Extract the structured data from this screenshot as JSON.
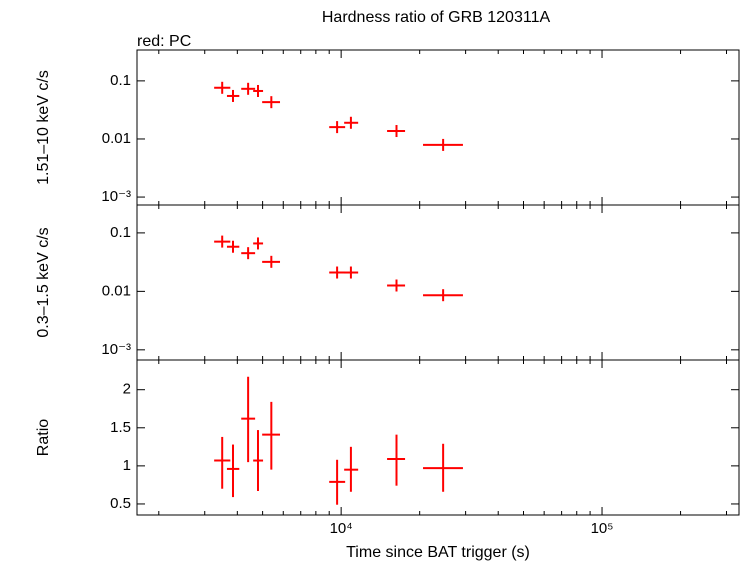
{
  "chart_data": [
    {
      "type": "scatter",
      "title": "Hardness ratio of GRB 120311A",
      "subtitle": "red: PC",
      "ylabel": "1.51–10 keV c/s",
      "xlog": true,
      "ylog": true,
      "xlim": [
        1650,
        335000
      ],
      "ylim": [
        0.00073,
        0.34
      ],
      "xticks": [
        10000,
        100000
      ],
      "xminor": [
        2000,
        3000,
        4000,
        5000,
        6000,
        7000,
        8000,
        9000,
        20000,
        30000,
        40000,
        50000,
        60000,
        70000,
        80000,
        90000,
        200000,
        300000
      ],
      "yticks": [
        0.1,
        0.01,
        {
          "value": 0.001,
          "label": "10⁻³"
        }
      ],
      "series": [
        {
          "name": "PC",
          "color": "#ff0000",
          "x": [
            3500,
            3850,
            4400,
            4800,
            5400,
            9650,
            10900,
            16300,
            24600
          ],
          "x_low": [
            3260,
            3650,
            4140,
            4600,
            4980,
            9000,
            10270,
            15000,
            20600
          ],
          "x_high": [
            3760,
            4070,
            4680,
            5020,
            5830,
            10360,
            11620,
            17580,
            29300
          ],
          "values": [
            0.076,
            0.055,
            0.073,
            0.067,
            0.043,
            0.016,
            0.019,
            0.0137,
            0.0079
          ]
        }
      ]
    },
    {
      "type": "scatter",
      "ylabel": "0.3–1.5 keV c/s",
      "xlog": true,
      "ylog": true,
      "xlim": [
        1650,
        335000
      ],
      "ylim": [
        0.00067,
        0.3
      ],
      "xticks": [
        10000,
        100000
      ],
      "xminor": [
        2000,
        3000,
        4000,
        5000,
        6000,
        7000,
        8000,
        9000,
        20000,
        30000,
        40000,
        50000,
        60000,
        70000,
        80000,
        90000,
        200000,
        300000
      ],
      "yticks": [
        0.1,
        0.01,
        {
          "value": 0.001,
          "label": "10⁻³"
        }
      ],
      "series": [
        {
          "name": "PC",
          "color": "#ff0000",
          "x": [
            3500,
            3850,
            4400,
            4800,
            5400,
            9650,
            10900,
            16300,
            24600
          ],
          "x_low": [
            3260,
            3650,
            4140,
            4600,
            4980,
            9000,
            10270,
            15000,
            20600
          ],
          "x_high": [
            3760,
            4070,
            4680,
            5020,
            5830,
            10360,
            11620,
            17580,
            29300
          ],
          "values": [
            0.071,
            0.058,
            0.045,
            0.066,
            0.032,
            0.021,
            0.021,
            0.0126,
            0.0086
          ]
        }
      ]
    },
    {
      "type": "scatter",
      "ylabel": "Ratio",
      "xlabel": "Time since BAT trigger (s)",
      "xlog": true,
      "ylog": false,
      "xlim": [
        1650,
        335000
      ],
      "ylim": [
        0.355,
        2.39
      ],
      "xticks": [
        {
          "value": 10000,
          "label": "10⁴"
        },
        {
          "value": 100000,
          "label": "10⁵"
        }
      ],
      "xminor": [
        2000,
        3000,
        4000,
        5000,
        6000,
        7000,
        8000,
        9000,
        20000,
        30000,
        40000,
        50000,
        60000,
        70000,
        80000,
        90000,
        200000,
        300000
      ],
      "yticks": [
        0.5,
        1,
        1.5,
        2
      ],
      "series": [
        {
          "name": "PC",
          "color": "#ff0000",
          "x": [
            3500,
            3850,
            4400,
            4800,
            5400,
            9650,
            10900,
            16300,
            24600
          ],
          "x_low": [
            3260,
            3650,
            4140,
            4600,
            4980,
            9000,
            10270,
            15000,
            20600
          ],
          "x_high": [
            3760,
            4070,
            4680,
            5020,
            5830,
            10360,
            11620,
            17580,
            29300
          ],
          "values": [
            1.07,
            0.96,
            1.62,
            1.07,
            1.41,
            0.79,
            0.95,
            1.09,
            0.97
          ],
          "y_low": [
            0.7,
            0.59,
            1.05,
            0.67,
            0.95,
            0.49,
            0.66,
            0.74,
            0.66
          ],
          "y_high": [
            1.38,
            1.28,
            2.17,
            1.47,
            1.84,
            1.08,
            1.25,
            1.41,
            1.29
          ]
        }
      ]
    }
  ]
}
